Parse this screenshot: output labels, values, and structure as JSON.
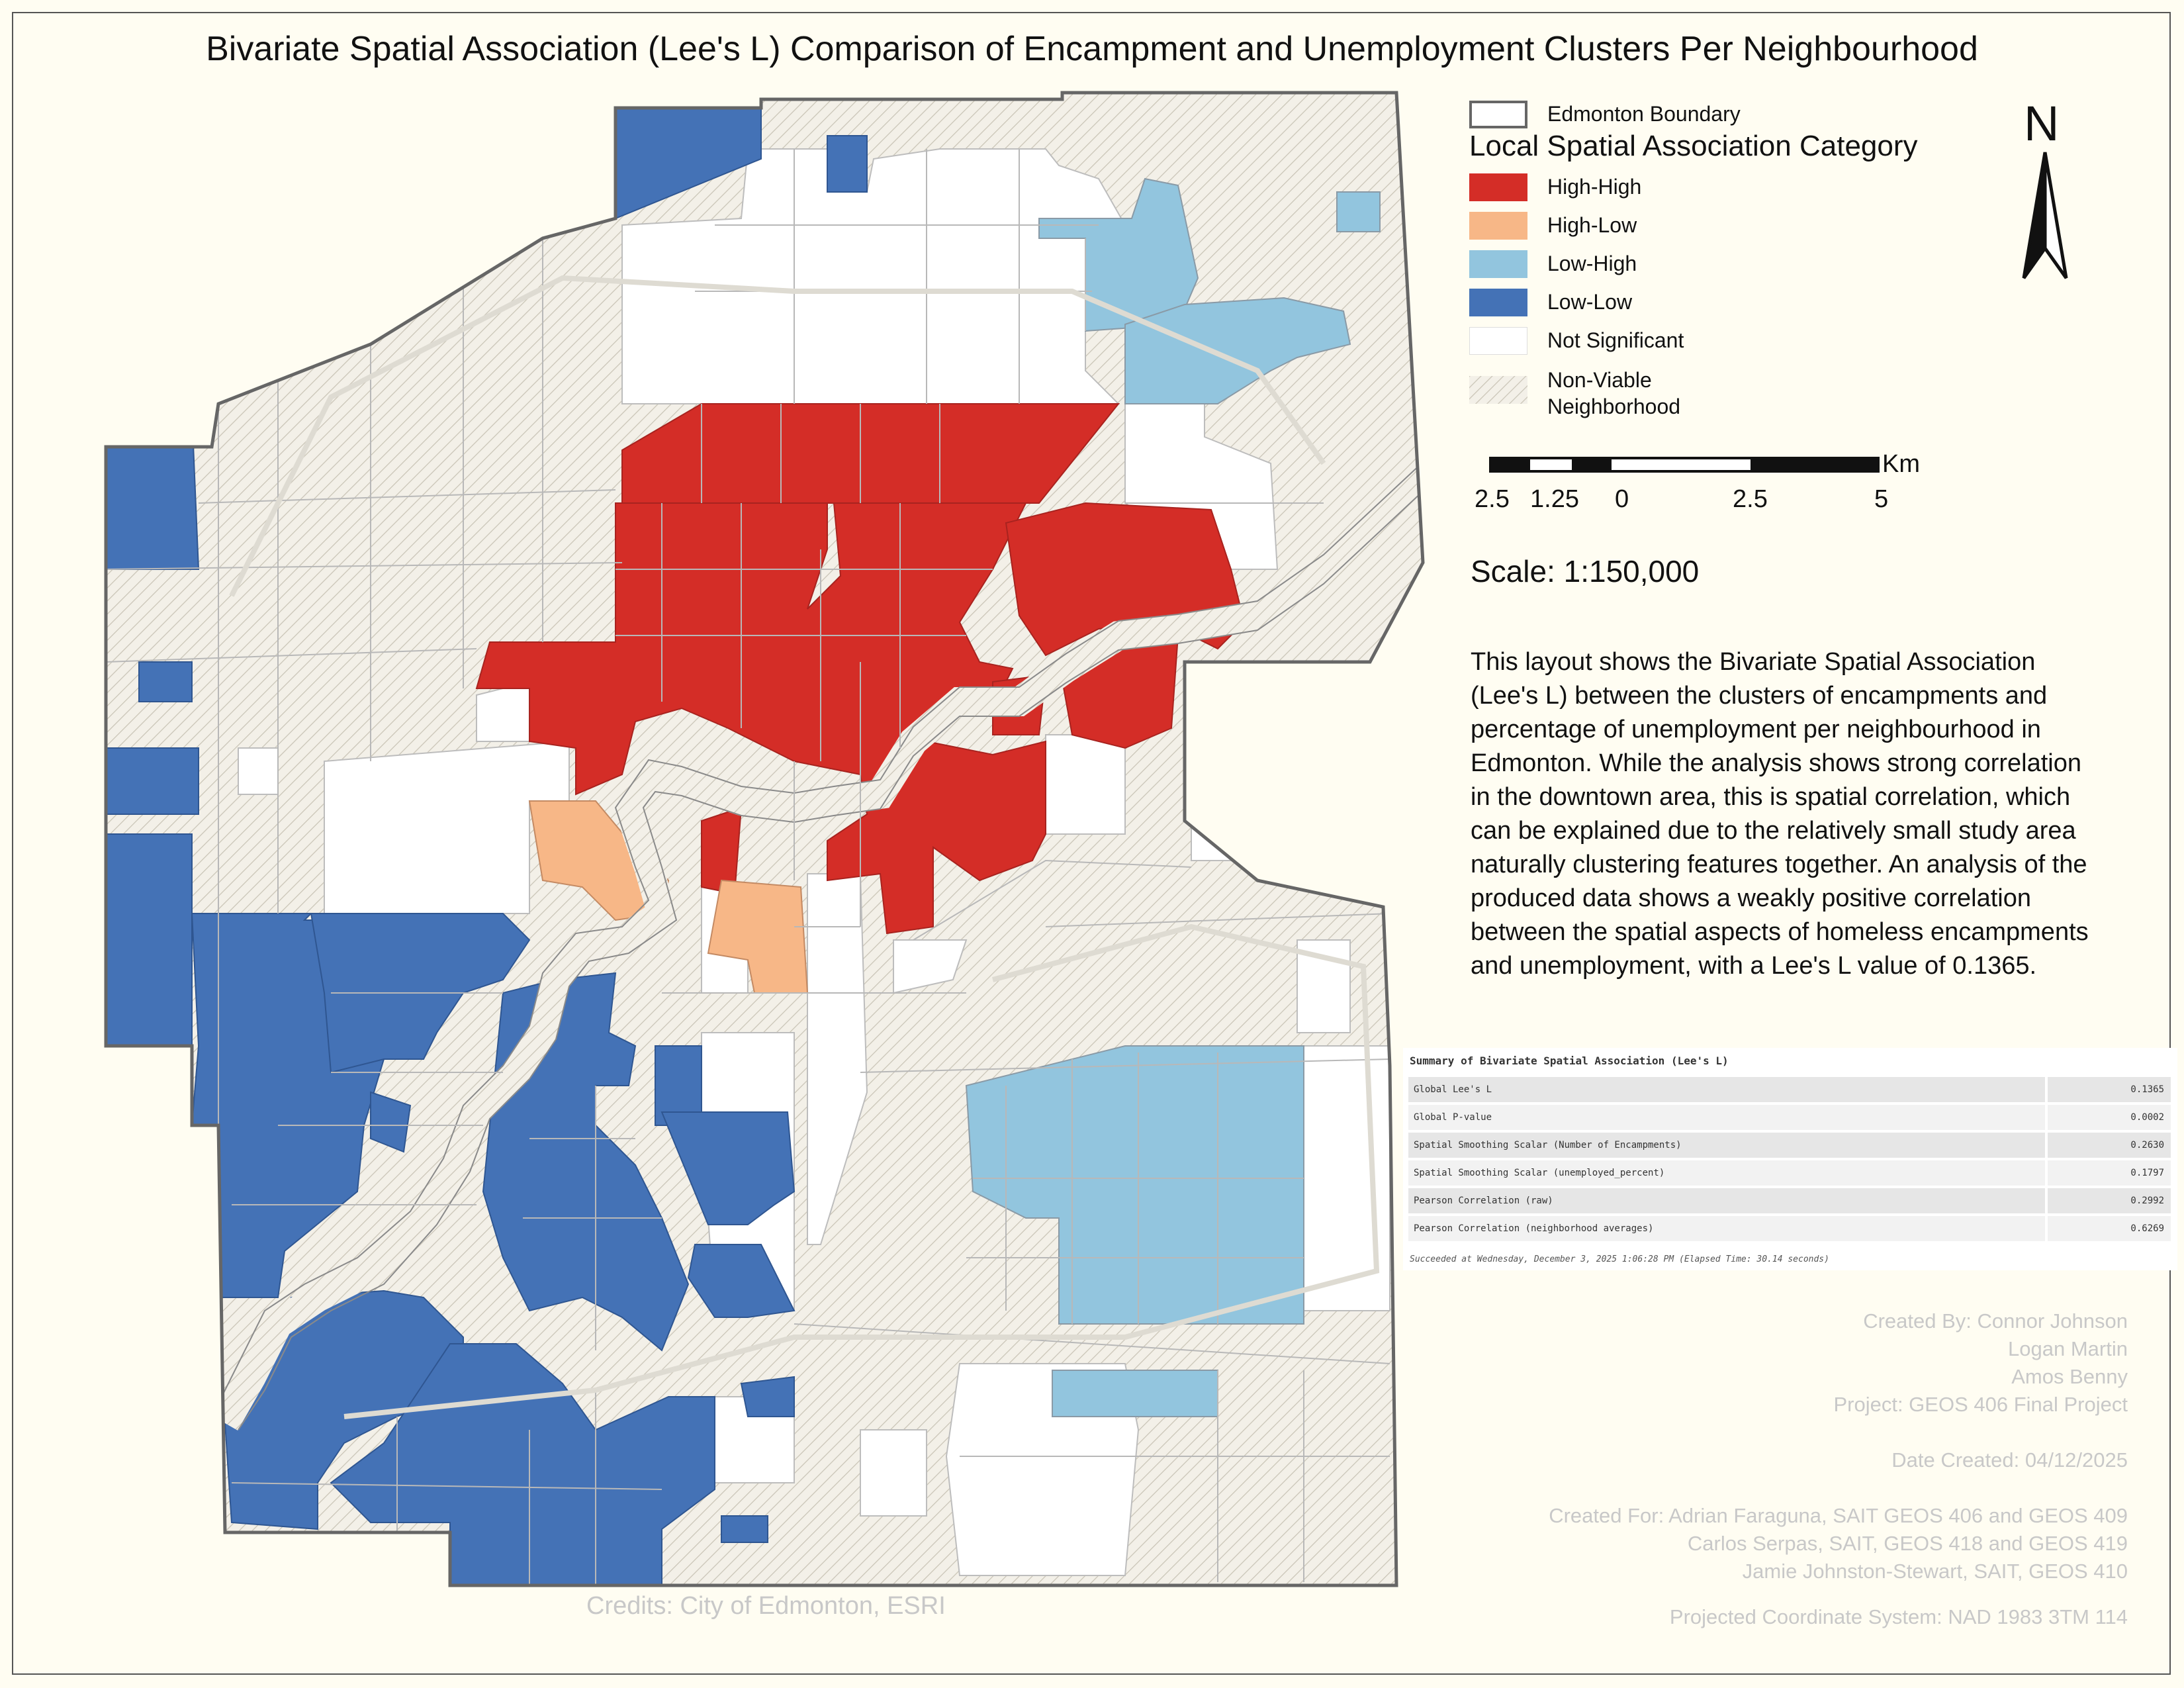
{
  "title": "Bivariate Spatial Association (Lee's L) Comparison of Encampment and Unemployment Clusters Per Neighbourhood",
  "legend": {
    "boundary_label": "Edmonton Boundary",
    "heading": "Local Spatial Association Category",
    "items": [
      {
        "label": "High-High",
        "color": "#d42d27"
      },
      {
        "label": "High-Low",
        "color": "#f7b787"
      },
      {
        "label": "Low-High",
        "color": "#92c5de"
      },
      {
        "label": "Low-Low",
        "color": "#4472b6"
      },
      {
        "label": "Not Significant",
        "color": "#ffffff"
      },
      {
        "label": "Non-Viable\nNeighborhood",
        "color": "#f2efe8"
      }
    ]
  },
  "north_arrow": {
    "label": "N",
    "icon": "north-arrow-icon"
  },
  "scale_bar": {
    "unit": "Km",
    "labels": [
      "2.5",
      "1.25",
      "0",
      "2.5",
      "5"
    ]
  },
  "scale_text": "Scale: 1:150,000",
  "description": "This layout shows the Bivariate Spatial Association (Lee's L) between the clusters of encampments and percentage of unemployment per neighbourhood in Edmonton. While the analysis shows strong correlation in the downtown area, this is spatial correlation, which can be explained due to the relatively small study area naturally clustering features together. An analysis of the produced data shows a weakly positive correlation between the spatial aspects of homeless encampments and unemployment, with a Lee's L value of 0.1365.",
  "summary": {
    "title": "Summary of Bivariate Spatial Association (Lee's L)",
    "rows": [
      {
        "label": "Global Lee's L",
        "value": "0.1365"
      },
      {
        "label": "Global P-value",
        "value": "0.0002"
      },
      {
        "label": "Spatial Smoothing Scalar (Number of Encampments)",
        "value": "0.2630"
      },
      {
        "label": "Spatial Smoothing Scalar (unemployed_percent)",
        "value": "0.1797"
      },
      {
        "label": "Pearson Correlation (raw)",
        "value": "0.2992"
      },
      {
        "label": "Pearson Correlation (neighborhood averages)",
        "value": "0.6269"
      }
    ],
    "footer": "Succeeded at Wednesday, December 3, 2025 1:06:28 PM (Elapsed Time: 30.14 seconds)"
  },
  "credits_block": [
    "Created By: Connor Johnson",
    "Logan Martin",
    "Amos Benny",
    "Project: GEOS 406 Final Project",
    "",
    "Date Created: 04/12/2025",
    "",
    "Created For: Adrian Faraguna, SAIT GEOS 406 and GEOS 409",
    "Carlos Serpas, SAIT, GEOS 418 and GEOS 419",
    "Jamie Johnston-Stewart, SAIT, GEOS 410"
  ],
  "credits": "Credits: City of Edmonton, ESRI",
  "crs": "Projected Coordinate System: NAD 1983 3TM 114"
}
